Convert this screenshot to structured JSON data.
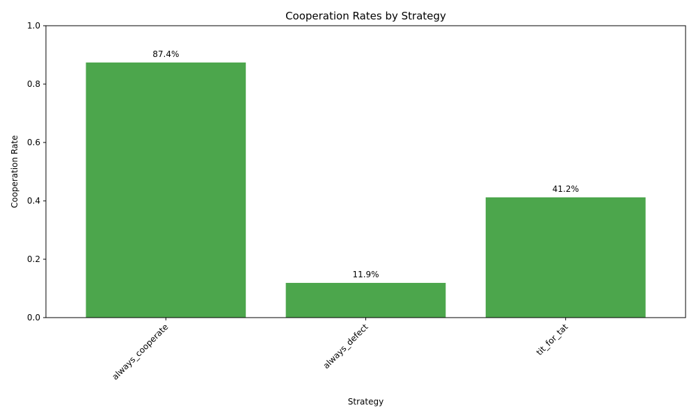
{
  "chart_data": {
    "type": "bar",
    "title": "Cooperation Rates by Strategy",
    "xlabel": "Strategy",
    "ylabel": "Cooperation Rate",
    "categories": [
      "always_cooperate",
      "always_defect",
      "tit_for_tat"
    ],
    "values": [
      0.874,
      0.119,
      0.412
    ],
    "value_labels": [
      "87.4%",
      "11.9%",
      "41.2%"
    ],
    "ylim": [
      0,
      1.0
    ],
    "yticks": [
      "0.0",
      "0.2",
      "0.4",
      "0.6",
      "0.8",
      "1.0"
    ],
    "bar_color": "#4ca64c",
    "grid": false,
    "legend": "none"
  }
}
